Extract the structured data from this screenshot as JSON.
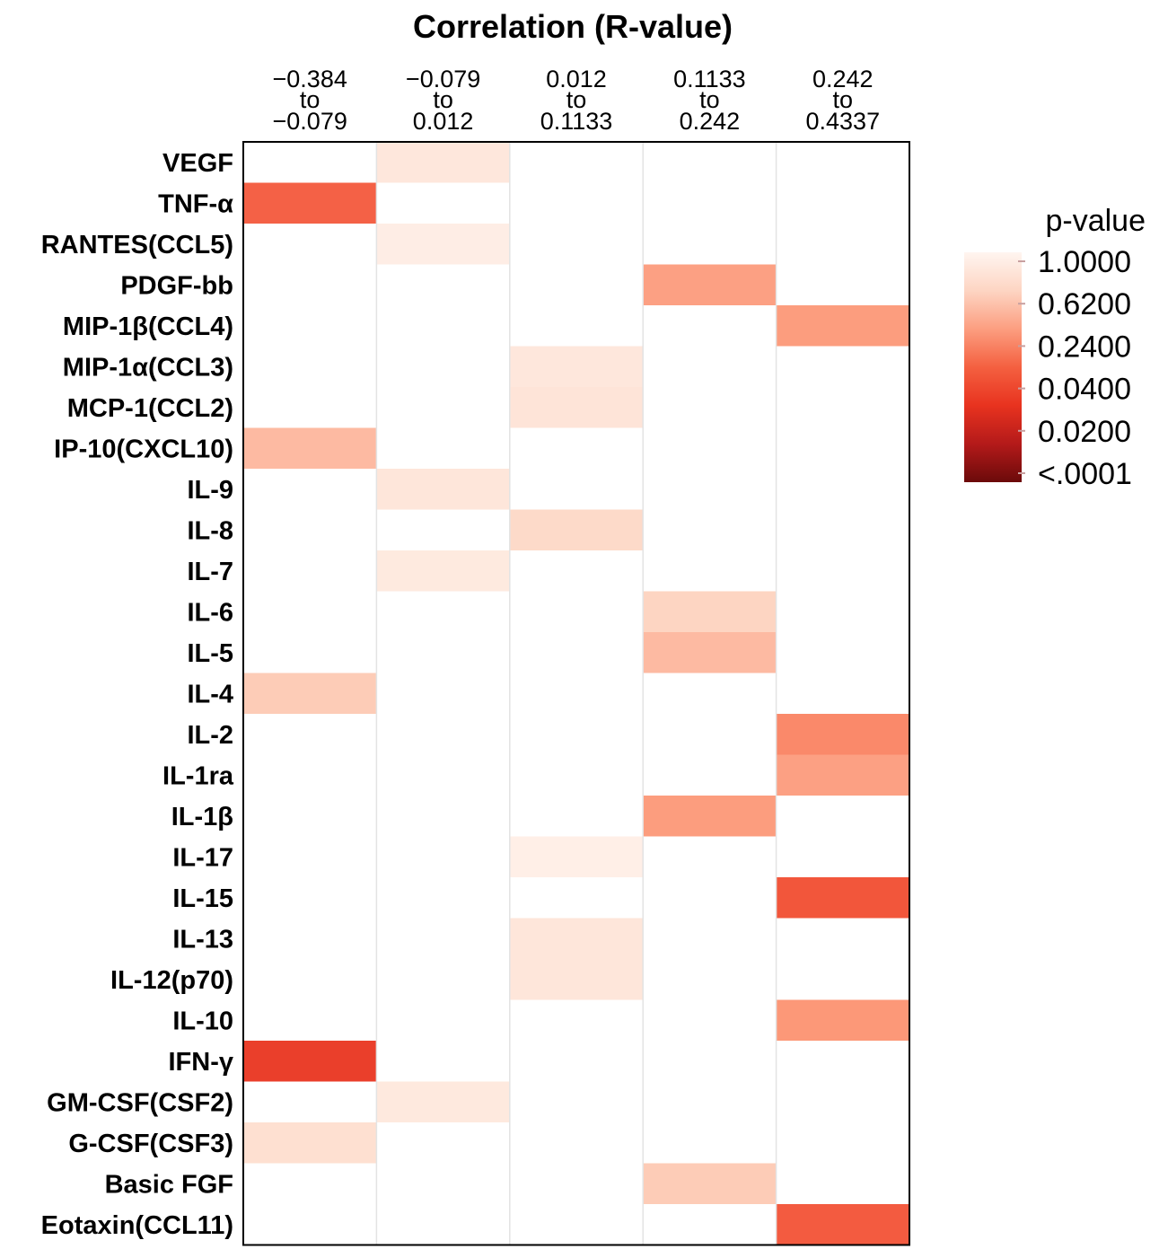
{
  "chart_data": {
    "type": "heatmap",
    "title": "Correlation (R-value)",
    "columns": [
      [
        "−0.384",
        "to",
        "−0.079"
      ],
      [
        "−0.079",
        "to",
        "0.012"
      ],
      [
        "0.012",
        "to",
        "0.1133"
      ],
      [
        "0.1133",
        "to",
        "0.242"
      ],
      [
        "0.242",
        "to",
        "0.4337"
      ]
    ],
    "rows": [
      "VEGF",
      "TNF-α",
      "RANTES(CCL5)",
      "PDGF-bb",
      "MIP-1β(CCL4)",
      "MIP-1α(CCL3)",
      "MCP-1(CCL2)",
      "IP-10(CXCL10)",
      "IL-9",
      "IL-8",
      "IL-7",
      "IL-6",
      "IL-5",
      "IL-4",
      "IL-2",
      "IL-1ra",
      "IL-1β",
      "IL-17",
      "IL-15",
      "IL-13",
      "IL-12(p70)",
      "IL-10",
      "IFN-γ",
      "GM-CSF(CSF2)",
      "G-CSF(CSF3)",
      "Basic FGF",
      "Eotaxin(CCL11)"
    ],
    "cells": [
      [
        null,
        0.82,
        null,
        null,
        null
      ],
      [
        0.08,
        null,
        null,
        null,
        null
      ],
      [
        null,
        0.9,
        null,
        null,
        null
      ],
      [
        null,
        null,
        null,
        0.3,
        null
      ],
      [
        null,
        null,
        null,
        null,
        0.28
      ],
      [
        null,
        null,
        0.82,
        null,
        null
      ],
      [
        null,
        null,
        0.78,
        null,
        null
      ],
      [
        0.45,
        null,
        null,
        null,
        null
      ],
      [
        null,
        0.8,
        null,
        null,
        null
      ],
      [
        null,
        null,
        0.65,
        null,
        null
      ],
      [
        null,
        0.85,
        null,
        null,
        null
      ],
      [
        null,
        null,
        null,
        0.6,
        null
      ],
      [
        null,
        null,
        null,
        0.45,
        null
      ],
      [
        0.55,
        null,
        null,
        null,
        null
      ],
      [
        null,
        null,
        null,
        null,
        0.2
      ],
      [
        null,
        null,
        null,
        null,
        0.3
      ],
      [
        null,
        null,
        null,
        0.28,
        null
      ],
      [
        null,
        null,
        0.92,
        null,
        null
      ],
      [
        null,
        null,
        null,
        null,
        0.045
      ],
      [
        null,
        null,
        0.8,
        null,
        null
      ],
      [
        null,
        null,
        0.8,
        null,
        null
      ],
      [
        null,
        null,
        null,
        null,
        0.25
      ],
      [
        0.03,
        null,
        null,
        null,
        null
      ],
      [
        null,
        0.84,
        null,
        null,
        null
      ],
      [
        0.72,
        null,
        null,
        null,
        null
      ],
      [
        null,
        null,
        null,
        0.55,
        null
      ],
      [
        null,
        null,
        null,
        null,
        0.06
      ]
    ],
    "legend": {
      "title": "p-value",
      "labels": [
        "1.0000",
        "0.6200",
        "0.2400",
        "0.0400",
        "0.0200",
        "<.0001"
      ],
      "placement": "right",
      "colors": [
        "#fff5f0",
        "#fdd5c3",
        "#fc9e80",
        "#f46040",
        "#e8331f",
        "#b41a1a",
        "#6b0a0a"
      ]
    }
  }
}
